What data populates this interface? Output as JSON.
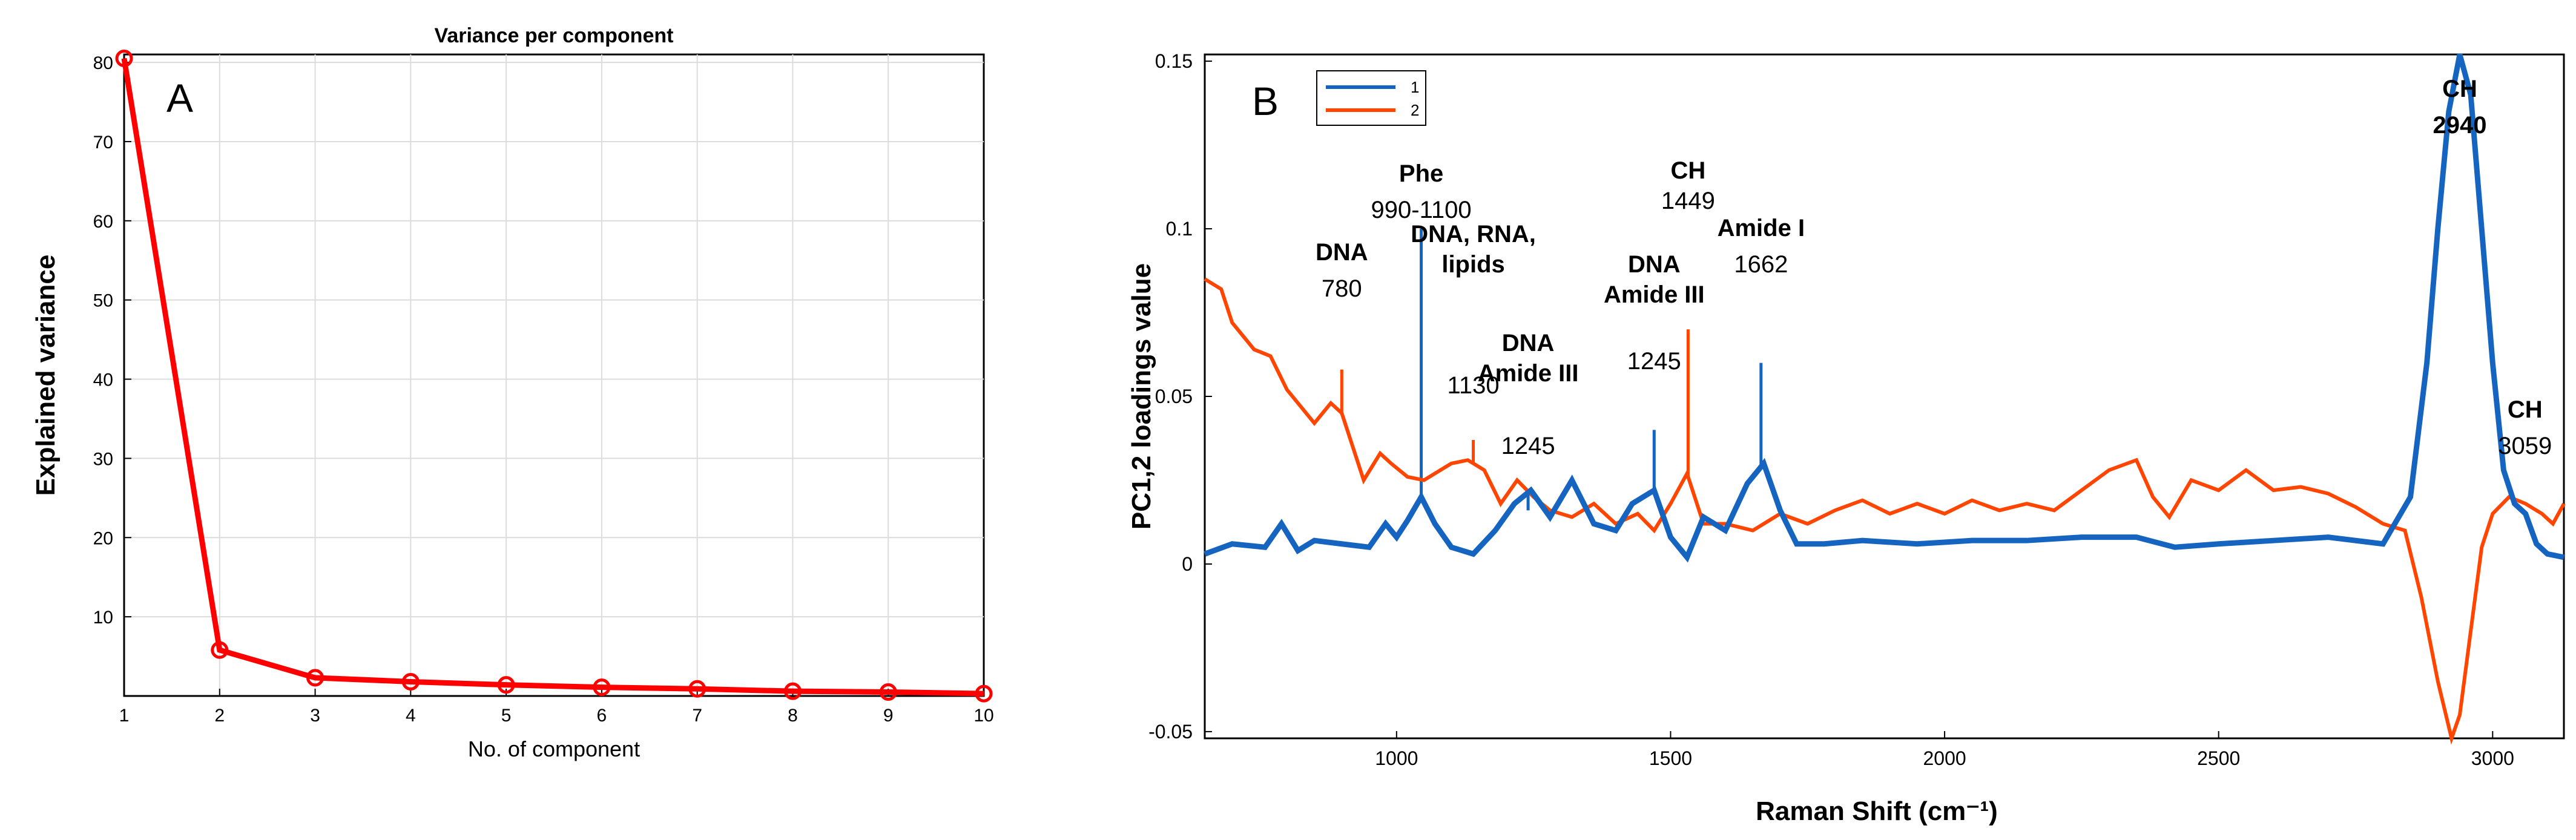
{
  "chart_data": [
    {
      "type": "line",
      "panel_label": "A",
      "title": "Variance per component",
      "xlabel": "No. of component",
      "ylabel": "Explained  variance",
      "xlim": [
        1,
        10
      ],
      "ylim": [
        0,
        81
      ],
      "x_ticks": [
        "1",
        "2",
        "3",
        "4",
        "5",
        "6",
        "7",
        "8",
        "9",
        "10"
      ],
      "y_ticks": [
        "10",
        "20",
        "30",
        "40",
        "50",
        "60",
        "70",
        "80"
      ],
      "grid": true,
      "series": [
        {
          "name": "explained variance",
          "color": "#ff0000",
          "x": [
            1,
            2,
            3,
            4,
            5,
            6,
            7,
            8,
            9,
            10
          ],
          "values": [
            80.5,
            5.8,
            2.3,
            1.8,
            1.4,
            1.1,
            0.9,
            0.6,
            0.5,
            0.3
          ]
        }
      ]
    },
    {
      "type": "line",
      "panel_label": "B",
      "xlabel": "Raman Shift (cm⁻¹)",
      "ylabel": "PC1,2 loadings  value",
      "xlim": [
        650,
        3130
      ],
      "ylim": [
        -0.052,
        0.152
      ],
      "x_ticks": [
        "1000",
        "1500",
        "2000",
        "2500",
        "3000"
      ],
      "y_ticks": [
        "-0.05",
        "0",
        "0.05",
        "0.1",
        "0.15"
      ],
      "legend": {
        "placement": "top-left",
        "entries": [
          "1",
          "2"
        ]
      },
      "series": [
        {
          "name": "1",
          "color": "#1565c0",
          "x": [
            650,
            700,
            760,
            790,
            820,
            850,
            900,
            950,
            980,
            1000,
            1020,
            1045,
            1070,
            1100,
            1140,
            1180,
            1215,
            1245,
            1280,
            1320,
            1360,
            1400,
            1430,
            1470,
            1500,
            1530,
            1560,
            1600,
            1640,
            1670,
            1700,
            1730,
            1780,
            1850,
            1950,
            2050,
            2150,
            2250,
            2350,
            2420,
            2500,
            2600,
            2700,
            2800,
            2850,
            2880,
            2900,
            2920,
            2940,
            2960,
            2980,
            3000,
            3020,
            3040,
            3060,
            3080,
            3100,
            3130
          ],
          "values": [
            0.003,
            0.006,
            0.005,
            0.012,
            0.004,
            0.007,
            0.006,
            0.005,
            0.012,
            0.008,
            0.013,
            0.02,
            0.012,
            0.005,
            0.003,
            0.01,
            0.018,
            0.022,
            0.014,
            0.025,
            0.012,
            0.01,
            0.018,
            0.022,
            0.008,
            0.002,
            0.014,
            0.01,
            0.024,
            0.03,
            0.016,
            0.006,
            0.006,
            0.007,
            0.006,
            0.007,
            0.007,
            0.008,
            0.008,
            0.005,
            0.006,
            0.007,
            0.008,
            0.006,
            0.02,
            0.06,
            0.1,
            0.135,
            0.152,
            0.14,
            0.1,
            0.06,
            0.028,
            0.018,
            0.015,
            0.006,
            0.003,
            0.002
          ]
        },
        {
          "name": "2",
          "color": "#ff4500",
          "x": [
            650,
            680,
            700,
            740,
            770,
            800,
            830,
            850,
            880,
            900,
            920,
            940,
            970,
            990,
            1020,
            1050,
            1080,
            1100,
            1130,
            1160,
            1190,
            1220,
            1250,
            1280,
            1320,
            1360,
            1400,
            1440,
            1470,
            1500,
            1530,
            1560,
            1600,
            1650,
            1700,
            1750,
            1800,
            1850,
            1900,
            1950,
            2000,
            2050,
            2100,
            2150,
            2200,
            2250,
            2300,
            2350,
            2380,
            2410,
            2450,
            2500,
            2550,
            2600,
            2650,
            2700,
            2750,
            2800,
            2840,
            2870,
            2900,
            2925,
            2940,
            2960,
            2980,
            3000,
            3030,
            3060,
            3090,
            3110,
            3130
          ],
          "values": [
            0.085,
            0.082,
            0.072,
            0.064,
            0.062,
            0.052,
            0.046,
            0.042,
            0.048,
            0.045,
            0.035,
            0.025,
            0.033,
            0.03,
            0.026,
            0.025,
            0.028,
            0.03,
            0.031,
            0.028,
            0.018,
            0.025,
            0.02,
            0.016,
            0.014,
            0.018,
            0.012,
            0.015,
            0.01,
            0.018,
            0.027,
            0.012,
            0.012,
            0.01,
            0.015,
            0.012,
            0.016,
            0.019,
            0.015,
            0.018,
            0.015,
            0.019,
            0.016,
            0.018,
            0.016,
            0.022,
            0.028,
            0.031,
            0.02,
            0.014,
            0.025,
            0.022,
            0.028,
            0.022,
            0.023,
            0.021,
            0.017,
            0.012,
            0.01,
            -0.01,
            -0.035,
            -0.052,
            -0.045,
            -0.02,
            0.005,
            0.015,
            0.02,
            0.018,
            0.015,
            0.012,
            0.018
          ]
        }
      ],
      "annotations": [
        {
          "label": "DNA",
          "value": "780",
          "x": 900,
          "color": "#ff4500",
          "top": 0.058
        },
        {
          "label": "Phe",
          "value": "990-1100",
          "x": 1045,
          "color": "#1565c0",
          "top": 0.1
        },
        {
          "label": "DNA, RNA,\nlipids",
          "value": "1130",
          "x": 1140,
          "color": "#ff4500",
          "top": 0.037
        },
        {
          "label": "DNA\nAmide III",
          "value": "1245",
          "x": 1240,
          "color": "#1565c0",
          "top": 0.016
        },
        {
          "label": "DNA\nAmide III",
          "value": "1245",
          "x": 1470,
          "color": "#1565c0",
          "top": 0.04
        },
        {
          "label": "CH",
          "value": "1449",
          "x": 1532,
          "color": "#ff4500",
          "top": 0.07
        },
        {
          "label": "Amide I",
          "value": "1662",
          "x": 1665,
          "color": "#1565c0",
          "top": 0.06
        },
        {
          "label": "CH",
          "value": "2940",
          "x": 2940,
          "color": "#1565c0",
          "top": null
        },
        {
          "label": "CH",
          "value": "3059",
          "x": 3059,
          "color": "#1565c0",
          "top": null
        }
      ]
    }
  ]
}
